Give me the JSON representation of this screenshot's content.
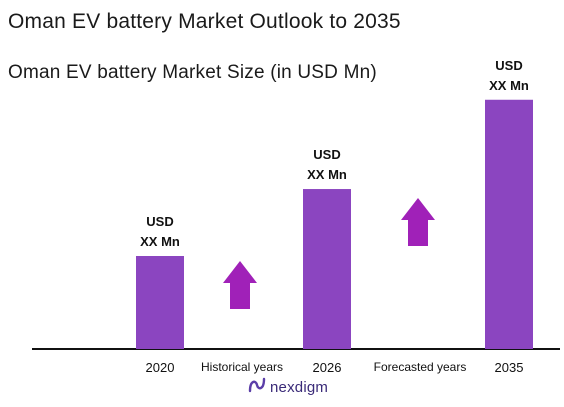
{
  "header": {
    "title": "Oman EV battery Market Outlook to 2035",
    "subtitle": "Oman EV battery Market Size (in USD Mn)"
  },
  "chart_data": {
    "type": "bar",
    "title": "Oman EV battery Market Outlook to 2035",
    "subtitle": "Oman EV battery Market Size (in USD Mn)",
    "xlabel": "",
    "ylabel": "",
    "categories": [
      "2020",
      "2026",
      "2035"
    ],
    "values": [
      0.25,
      0.43,
      0.67
    ],
    "value_scale": "relative bar height (values not printed)",
    "ylim": [
      0,
      1
    ],
    "grid": false,
    "legend": "none",
    "bar_labels": [
      {
        "line1": "USD",
        "line2": "XX Mn"
      },
      {
        "line1": "USD",
        "line2": "XX Mn"
      },
      {
        "line1": "USD",
        "line2": "XX Mn"
      }
    ],
    "period_labels": [
      "Historical years",
      "Forecasted years"
    ],
    "colors": {
      "bar": "#8b45c0",
      "arrow": "#a021b8",
      "axis": "#111111"
    }
  },
  "brand": {
    "logo_text": "nexdigm",
    "logo_icon": "nexdigm-logo-icon"
  }
}
